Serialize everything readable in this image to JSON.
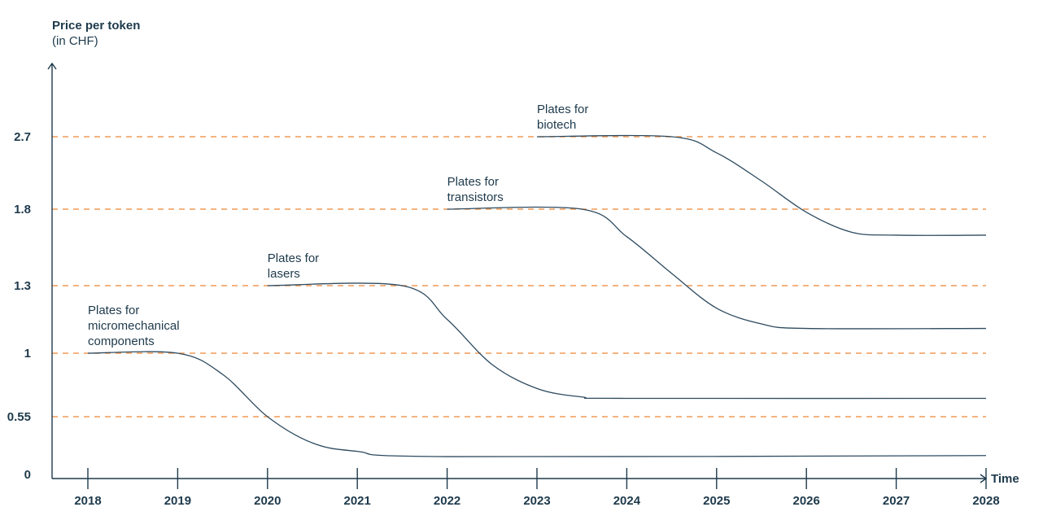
{
  "chart_data": {
    "type": "line",
    "ylabel": "Price per token",
    "ylabel_unit": "(in CHF)",
    "xlabel": "Time",
    "x_ticks": [
      "2018",
      "2019",
      "2020",
      "2021",
      "2022",
      "2023",
      "2024",
      "2025",
      "2026",
      "2027",
      "2028"
    ],
    "y_ticks": [
      "0",
      "0.55",
      "1",
      "1.3",
      "1.8",
      "2.7"
    ],
    "reference_lines": [
      0.55,
      1,
      1.3,
      1.8,
      2.7
    ],
    "grid": "dashed horizontal reference lines at y ticks",
    "series": [
      {
        "name_lines": [
          "Plates for",
          "micromechanical",
          "components"
        ],
        "x": [
          2018,
          2019,
          2019.5,
          2020,
          2020.5,
          2021,
          2022,
          2028
        ],
        "y": [
          1,
          1,
          0.85,
          0.55,
          0.3,
          0.22,
          0.17,
          0.18
        ]
      },
      {
        "name_lines": [
          "Plates for",
          "lasers"
        ],
        "x": [
          2020,
          2021.5,
          2022,
          2022.5,
          2023,
          2023.5,
          2024,
          2028
        ],
        "y": [
          1.3,
          1.3,
          1.15,
          0.92,
          0.75,
          0.69,
          0.68,
          0.68
        ]
      },
      {
        "name_lines": [
          "Plates for",
          "transistors"
        ],
        "x": [
          2022,
          2023.5,
          2024,
          2024.5,
          2025,
          2025.5,
          2026,
          2028
        ],
        "y": [
          1.8,
          1.8,
          1.62,
          1.38,
          1.2,
          1.13,
          1.11,
          1.11
        ]
      },
      {
        "name_lines": [
          "Plates for",
          "biotech"
        ],
        "x": [
          2023,
          2024.5,
          2025,
          2025.5,
          2026,
          2026.5,
          2027,
          2028
        ],
        "y": [
          2.7,
          2.7,
          2.5,
          2.15,
          1.78,
          1.65,
          1.63,
          1.63
        ]
      }
    ],
    "colors": {
      "line": "#2e4b60",
      "reference": "#f29a55",
      "axis": "#1e3a4c",
      "text": "#1e3a4c"
    }
  }
}
